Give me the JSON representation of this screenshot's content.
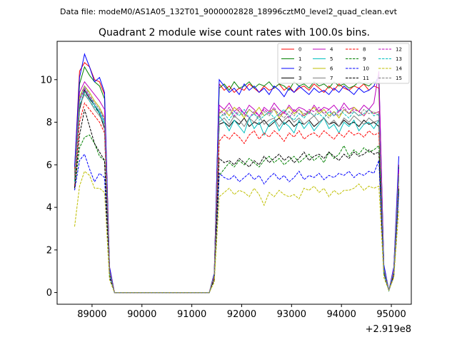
{
  "chart_data": {
    "type": "line",
    "supertitle": "Data file: modeM0/AS1A05_132T01_9000002828_18996cztM0_level2_quad_clean.evt",
    "title": "Quadrant 2 module wise count rates with 100.0s bins.",
    "xlabel": "",
    "ylabel": "",
    "x_offset_label": "+2.919e8",
    "xlim": [
      88300,
      95400
    ],
    "ylim": [
      -0.55,
      11.8
    ],
    "xticks": [
      89000,
      90000,
      91000,
      92000,
      93000,
      94000,
      95000
    ],
    "yticks": [
      0,
      2,
      4,
      6,
      8,
      10
    ],
    "grid": false,
    "legend": {
      "position": "top-right",
      "columns": 4
    },
    "x": [
      88650,
      88750,
      88850,
      88950,
      89050,
      89150,
      89250,
      89350,
      89450,
      89550,
      89650,
      89750,
      89850,
      89950,
      90050,
      90150,
      90250,
      90350,
      90450,
      90550,
      90650,
      90750,
      90850,
      90950,
      91050,
      91150,
      91250,
      91350,
      91450,
      91550,
      91650,
      91750,
      91850,
      91950,
      92050,
      92150,
      92250,
      92350,
      92450,
      92550,
      92650,
      92750,
      92850,
      92950,
      93050,
      93150,
      93250,
      93350,
      93450,
      93550,
      93650,
      93750,
      93850,
      93950,
      94050,
      94150,
      94250,
      94350,
      94450,
      94550,
      94650,
      94750,
      94850,
      94950,
      95050,
      95150
    ],
    "series": [
      {
        "name": "0",
        "color": "#ff0000",
        "dash": "solid",
        "values": [
          5.8,
          10.4,
          10.8,
          10.6,
          10.0,
          9.9,
          9.3,
          1.2,
          0,
          0,
          0,
          0,
          0,
          0,
          0,
          0,
          0,
          0,
          0,
          0,
          0,
          0,
          0,
          0,
          0,
          0,
          0,
          0,
          0.9,
          9.8,
          9.5,
          9.7,
          9.4,
          9.6,
          9.5,
          9.8,
          9.6,
          9.4,
          9.7,
          9.5,
          9.6,
          9.8,
          9.5,
          9.7,
          9.4,
          9.6,
          9.7,
          9.5,
          9.8,
          9.6,
          9.4,
          9.7,
          9.5,
          9.8,
          9.6,
          9.5,
          9.7,
          9.6,
          9.8,
          9.5,
          9.7,
          9.6,
          1.2,
          0.1,
          1.1,
          6.0
        ]
      },
      {
        "name": "1",
        "color": "#008000",
        "dash": "solid",
        "values": [
          5.6,
          9.8,
          10.6,
          10.2,
          9.9,
          9.7,
          9.1,
          1.1,
          0,
          0,
          0,
          0,
          0,
          0,
          0,
          0,
          0,
          0,
          0,
          0,
          0,
          0,
          0,
          0,
          0,
          0,
          0,
          0,
          0.9,
          9.6,
          9.8,
          9.5,
          9.9,
          9.6,
          9.7,
          9.9,
          9.6,
          9.8,
          9.7,
          9.9,
          9.6,
          9.8,
          9.7,
          9.5,
          9.9,
          9.7,
          9.8,
          9.6,
          9.9,
          9.7,
          9.8,
          9.6,
          9.9,
          9.7,
          9.8,
          9.6,
          9.7,
          9.9,
          9.8,
          9.7,
          9.9,
          9.8,
          1.2,
          0.1,
          1.1,
          5.9
        ]
      },
      {
        "name": "2",
        "color": "#0000ff",
        "dash": "solid",
        "values": [
          5.9,
          10.1,
          11.2,
          10.6,
          9.9,
          10.1,
          9.4,
          1.2,
          0,
          0,
          0,
          0,
          0,
          0,
          0,
          0,
          0,
          0,
          0,
          0,
          0,
          0,
          0,
          0,
          0,
          0,
          0,
          0,
          0.9,
          10.0,
          9.7,
          9.4,
          9.6,
          9.3,
          9.8,
          9.5,
          9.7,
          9.4,
          9.6,
          9.3,
          9.7,
          9.5,
          9.2,
          9.6,
          9.4,
          9.7,
          9.5,
          9.3,
          9.6,
          9.4,
          9.5,
          9.3,
          9.6,
          9.4,
          9.7,
          9.5,
          9.3,
          9.6,
          9.4,
          9.5,
          9.7,
          10.2,
          1.3,
          0.1,
          1.2,
          6.4
        ]
      },
      {
        "name": "3",
        "color": "#000000",
        "dash": "solid",
        "values": [
          5.2,
          8.6,
          9.5,
          9.1,
          8.8,
          8.4,
          7.7,
          0.9,
          0,
          0,
          0,
          0,
          0,
          0,
          0,
          0,
          0,
          0,
          0,
          0,
          0,
          0,
          0,
          0,
          0,
          0,
          0,
          0,
          0.8,
          7.9,
          8.0,
          7.8,
          8.1,
          7.9,
          8.2,
          7.8,
          8.0,
          7.9,
          8.1,
          7.8,
          8.0,
          8.2,
          7.9,
          8.1,
          7.8,
          8.0,
          7.9,
          8.1,
          7.8,
          8.0,
          8.2,
          7.9,
          8.0,
          7.8,
          8.1,
          7.9,
          8.0,
          7.8,
          8.1,
          7.9,
          8.0,
          7.8,
          1.0,
          0.1,
          1.0,
          5.4
        ]
      },
      {
        "name": "4",
        "color": "#bf00bf",
        "dash": "solid",
        "values": [
          5.5,
          9.4,
          9.9,
          9.6,
          9.3,
          9.0,
          8.6,
          1.0,
          0,
          0,
          0,
          0,
          0,
          0,
          0,
          0,
          0,
          0,
          0,
          0,
          0,
          0,
          0,
          0,
          0,
          0,
          0,
          0,
          0.8,
          8.8,
          8.6,
          8.9,
          8.5,
          8.7,
          8.4,
          8.8,
          8.6,
          8.3,
          8.7,
          8.5,
          8.9,
          8.6,
          8.4,
          8.8,
          8.5,
          8.7,
          8.6,
          8.4,
          8.8,
          8.5,
          8.7,
          8.6,
          8.8,
          8.5,
          8.9,
          8.6,
          8.7,
          8.5,
          8.8,
          8.6,
          8.9,
          10.4,
          1.1,
          0.1,
          1.1,
          5.8
        ]
      },
      {
        "name": "5",
        "color": "#00bfbf",
        "dash": "solid",
        "values": [
          5.3,
          9.0,
          9.6,
          9.2,
          8.8,
          8.5,
          8.0,
          0.9,
          0,
          0,
          0,
          0,
          0,
          0,
          0,
          0,
          0,
          0,
          0,
          0,
          0,
          0,
          0,
          0,
          0,
          0,
          0,
          0,
          0.8,
          8.3,
          8.0,
          7.6,
          8.1,
          7.8,
          7.5,
          8.2,
          7.7,
          8.0,
          7.4,
          7.9,
          8.1,
          7.6,
          8.0,
          7.8,
          7.5,
          8.1,
          7.7,
          8.0,
          7.6,
          7.9,
          8.2,
          7.7,
          7.9,
          7.5,
          8.0,
          7.8,
          8.1,
          7.6,
          7.9,
          8.0,
          7.7,
          8.1,
          1.0,
          0.1,
          1.0,
          5.5
        ]
      },
      {
        "name": "6",
        "color": "#bfbf00",
        "dash": "solid",
        "values": [
          5.4,
          9.2,
          9.7,
          9.4,
          9.0,
          8.7,
          8.2,
          1.0,
          0,
          0,
          0,
          0,
          0,
          0,
          0,
          0,
          0,
          0,
          0,
          0,
          0,
          0,
          0,
          0,
          0,
          0,
          0,
          0,
          0.8,
          8.4,
          8.6,
          8.3,
          8.7,
          8.5,
          8.2,
          8.6,
          8.4,
          8.7,
          8.3,
          8.5,
          8.6,
          8.2,
          8.5,
          8.7,
          8.4,
          8.6,
          8.3,
          8.5,
          8.7,
          8.4,
          8.6,
          8.3,
          8.5,
          8.2,
          8.6,
          8.4,
          8.7,
          8.5,
          8.3,
          8.6,
          8.4,
          8.5,
          1.1,
          0.1,
          1.0,
          5.6
        ]
      },
      {
        "name": "7",
        "color": "#808080",
        "dash": "solid",
        "values": [
          5.2,
          8.8,
          9.3,
          9.0,
          8.6,
          8.3,
          7.9,
          0.9,
          0,
          0,
          0,
          0,
          0,
          0,
          0,
          0,
          0,
          0,
          0,
          0,
          0,
          0,
          0,
          0,
          0,
          0,
          0,
          0,
          0.8,
          8.0,
          8.2,
          7.9,
          8.3,
          8.1,
          7.8,
          8.2,
          8.0,
          8.3,
          7.9,
          8.1,
          8.2,
          7.8,
          8.1,
          8.3,
          8.0,
          8.2,
          7.9,
          8.1,
          8.3,
          8.0,
          8.2,
          7.9,
          8.1,
          7.8,
          8.2,
          8.0,
          8.3,
          8.1,
          7.9,
          8.2,
          8.0,
          8.1,
          1.0,
          0.1,
          1.0,
          5.3
        ]
      },
      {
        "name": "8",
        "color": "#ff0000",
        "dash": "dashed",
        "values": [
          5.0,
          8.0,
          8.9,
          8.6,
          8.3,
          8.0,
          7.5,
          0.9,
          0,
          0,
          0,
          0,
          0,
          0,
          0,
          0,
          0,
          0,
          0,
          0,
          0,
          0,
          0,
          0,
          0,
          0,
          0,
          0,
          0.7,
          7.1,
          7.4,
          7.2,
          7.5,
          7.3,
          7.0,
          7.4,
          7.6,
          7.2,
          7.5,
          7.3,
          7.6,
          7.4,
          7.1,
          7.5,
          7.3,
          7.6,
          7.2,
          7.4,
          7.5,
          7.3,
          7.6,
          7.4,
          7.2,
          7.5,
          7.3,
          7.6,
          7.4,
          7.5,
          7.3,
          7.6,
          7.4,
          7.5,
          1.0,
          0.1,
          0.9,
          5.0
        ]
      },
      {
        "name": "9",
        "color": "#008000",
        "dash": "dashed",
        "values": [
          4.9,
          6.8,
          7.3,
          7.4,
          7.0,
          6.4,
          6.2,
          0.8,
          0,
          0,
          0,
          0,
          0,
          0,
          0,
          0,
          0,
          0,
          0,
          0,
          0,
          0,
          0,
          0,
          0,
          0,
          0,
          0,
          0.6,
          5.5,
          5.8,
          6.1,
          5.9,
          6.2,
          6.0,
          6.3,
          6.1,
          5.9,
          6.2,
          6.4,
          6.1,
          6.3,
          6.0,
          6.2,
          6.4,
          6.1,
          6.3,
          6.5,
          6.2,
          6.4,
          6.1,
          6.6,
          6.3,
          6.5,
          6.9,
          6.4,
          6.7,
          6.5,
          6.8,
          6.6,
          6.7,
          6.9,
          0.9,
          0.1,
          0.8,
          4.8
        ]
      },
      {
        "name": "10",
        "color": "#0000ff",
        "dash": "dashed",
        "values": [
          4.8,
          6.2,
          6.5,
          5.8,
          5.2,
          5.6,
          5.4,
          0.7,
          0,
          0,
          0,
          0,
          0,
          0,
          0,
          0,
          0,
          0,
          0,
          0,
          0,
          0,
          0,
          0,
          0,
          0,
          0,
          0,
          0.6,
          5.6,
          5.4,
          5.3,
          5.5,
          5.2,
          5.4,
          5.6,
          5.3,
          5.5,
          5.1,
          5.4,
          5.6,
          5.3,
          5.5,
          5.2,
          5.4,
          5.7,
          5.3,
          5.5,
          5.4,
          5.6,
          5.3,
          5.5,
          5.4,
          5.6,
          5.5,
          5.7,
          5.4,
          5.6,
          5.5,
          5.7,
          5.6,
          6.2,
          0.9,
          0.1,
          0.8,
          4.7
        ]
      },
      {
        "name": "11",
        "color": "#000000",
        "dash": "dashed",
        "values": [
          4.9,
          7.4,
          8.6,
          7.8,
          7.0,
          6.6,
          6.2,
          0.8,
          0,
          0,
          0,
          0,
          0,
          0,
          0,
          0,
          0,
          0,
          0,
          0,
          0,
          0,
          0,
          0,
          0,
          0,
          0,
          0,
          0.6,
          6.3,
          6.1,
          6.2,
          6.0,
          6.3,
          6.1,
          5.9,
          6.2,
          6.0,
          6.4,
          6.1,
          6.3,
          6.5,
          6.2,
          6.4,
          6.1,
          6.3,
          6.6,
          6.2,
          6.4,
          6.5,
          6.3,
          6.6,
          6.4,
          6.2,
          6.5,
          6.3,
          6.6,
          6.4,
          6.5,
          6.7,
          6.5,
          6.6,
          0.9,
          0.1,
          0.8,
          4.9
        ]
      },
      {
        "name": "12",
        "color": "#bf00bf",
        "dash": "dashed",
        "values": [
          5.3,
          9.0,
          9.6,
          9.2,
          8.9,
          8.6,
          8.1,
          1.0,
          0,
          0,
          0,
          0,
          0,
          0,
          0,
          0,
          0,
          0,
          0,
          0,
          0,
          0,
          0,
          0,
          0,
          0,
          0,
          0,
          0.8,
          8.6,
          8.4,
          8.7,
          8.3,
          8.6,
          8.4,
          8.2,
          8.5,
          8.3,
          8.6,
          8.4,
          8.7,
          8.3,
          8.5,
          8.2,
          8.6,
          8.4,
          8.3,
          8.6,
          8.5,
          8.7,
          8.4,
          8.6,
          8.3,
          8.5,
          8.7,
          8.4,
          8.6,
          8.5,
          8.3,
          8.6,
          8.4,
          8.5,
          1.1,
          0.1,
          1.0,
          5.6
        ]
      },
      {
        "name": "13",
        "color": "#00bfbf",
        "dash": "dashed",
        "values": [
          5.2,
          8.8,
          9.4,
          9.0,
          8.7,
          8.4,
          7.9,
          0.9,
          0,
          0,
          0,
          0,
          0,
          0,
          0,
          0,
          0,
          0,
          0,
          0,
          0,
          0,
          0,
          0,
          0,
          0,
          0,
          0,
          0.8,
          8.2,
          8.4,
          8.1,
          8.5,
          8.3,
          8.6,
          8.2,
          8.4,
          8.1,
          8.3,
          8.5,
          8.2,
          8.4,
          8.6,
          8.3,
          8.1,
          8.4,
          8.2,
          8.5,
          8.3,
          8.4,
          8.2,
          8.5,
          8.3,
          8.6,
          8.4,
          8.2,
          8.5,
          8.3,
          8.4,
          8.6,
          8.3,
          8.4,
          1.0,
          0.1,
          1.0,
          5.4
        ]
      },
      {
        "name": "14",
        "color": "#bfbf00",
        "dash": "dashed",
        "values": [
          3.1,
          5.0,
          5.7,
          5.5,
          4.9,
          4.9,
          4.7,
          0.6,
          0,
          0,
          0,
          0,
          0,
          0,
          0,
          0,
          0,
          0,
          0,
          0,
          0,
          0,
          0,
          0,
          0,
          0,
          0,
          0,
          0.5,
          4.5,
          4.7,
          4.9,
          4.6,
          4.8,
          4.7,
          4.5,
          4.9,
          4.6,
          4.1,
          4.7,
          4.5,
          4.8,
          4.6,
          4.5,
          4.6,
          4.4,
          4.9,
          4.8,
          5.0,
          4.7,
          4.9,
          4.5,
          4.8,
          4.6,
          4.8,
          4.8,
          4.9,
          5.1,
          4.8,
          5.0,
          4.9,
          5.0,
          0.7,
          0.1,
          0.7,
          3.9
        ]
      },
      {
        "name": "15",
        "color": "#808080",
        "dash": "dashed",
        "values": [
          5.3,
          9.1,
          9.7,
          9.3,
          8.9,
          8.6,
          8.2,
          1.0,
          0,
          0,
          0,
          0,
          0,
          0,
          0,
          0,
          0,
          0,
          0,
          0,
          0,
          0,
          0,
          0,
          0,
          0,
          0,
          0,
          0.8,
          8.5,
          8.3,
          8.6,
          8.2,
          8.5,
          8.3,
          8.6,
          8.4,
          8.2,
          8.5,
          8.3,
          8.6,
          8.4,
          8.2,
          8.5,
          8.3,
          8.6,
          8.4,
          8.5,
          8.3,
          8.6,
          8.4,
          8.2,
          8.5,
          8.3,
          8.6,
          8.4,
          8.5,
          8.3,
          8.6,
          8.4,
          8.5,
          8.3,
          1.1,
          0.1,
          1.0,
          5.5
        ]
      }
    ]
  }
}
